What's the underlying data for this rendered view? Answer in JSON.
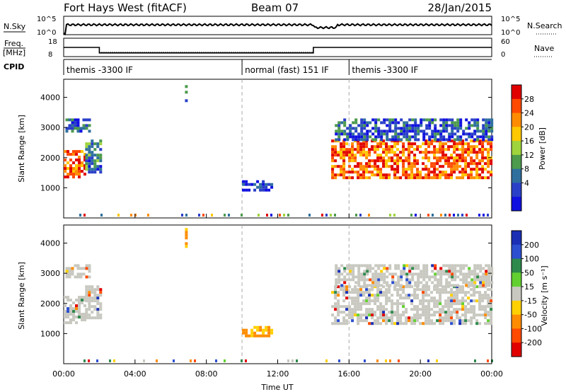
{
  "header": {
    "site": "Fort Hays West (fitACF)",
    "beam": "Beam 07",
    "date": "28/Jan/2015"
  },
  "noise_panel": {
    "left_label": "N.Sky",
    "left_ticks": [
      "10^5",
      "10^0"
    ],
    "right_ticks": [
      "10^5",
      "10^0"
    ],
    "right_label": "N.Search"
  },
  "freq_panel": {
    "left_label_top": "Freq.",
    "left_label_bottom": "[MHz]",
    "left_ticks": [
      "18",
      "8"
    ],
    "right_ticks": [
      "60",
      "0"
    ],
    "right_label": "Nave"
  },
  "cpid_panel": {
    "label": "CPID",
    "segments": [
      {
        "text": "themis -3300 IF",
        "start_hour": 0,
        "end_hour": 10
      },
      {
        "text": "normal (fast) 151 IF",
        "start_hour": 10,
        "end_hour": 16
      },
      {
        "text": "themis -3300 IF",
        "start_hour": 16,
        "end_hour": 24
      }
    ]
  },
  "time_axis": {
    "label": "Time UT",
    "ticks": [
      "00:00",
      "04:00",
      "08:00",
      "12:00",
      "16:00",
      "20:00",
      "00:00"
    ]
  },
  "power_panel": {
    "ylabel": "Slant Range [km]",
    "yticks": [
      "4000",
      "3000",
      "2000",
      "1000"
    ],
    "colorbar_label": "Power [dB]",
    "colorbar_ticks": [
      "28",
      "24",
      "20",
      "16",
      "12",
      "8",
      "4"
    ],
    "colors": [
      "#e10000",
      "#ff4a00",
      "#ff8c00",
      "#ffc800",
      "#9fd43c",
      "#4c9a4c",
      "#2e6f9e",
      "#2a3fc8",
      "#1010e0"
    ]
  },
  "velocity_panel": {
    "ylabel": "Slant Range [km]",
    "yticks": [
      "4000",
      "3000",
      "2000",
      "1000"
    ],
    "colorbar_label": "Velocity [m s⁻¹]",
    "colorbar_ticks": [
      "200",
      "100",
      "50",
      "15",
      "-15",
      "-50",
      "-100",
      "-200"
    ],
    "colors": [
      "#1a2fb4",
      "#2c4fd0",
      "#2e8a4c",
      "#62d030",
      "#c8c8c0",
      "#ffd000",
      "#ff8c00",
      "#ff4a00",
      "#e10000"
    ]
  },
  "chart_data": {
    "type": "heatmap",
    "x_range_hours": [
      0,
      24
    ],
    "y_range_km": [
      0,
      4600
    ],
    "echo_regions": [
      {
        "t0": 0.0,
        "t1": 1.2,
        "r0": 1350,
        "r1": 2250,
        "power_db": 24,
        "velocity": -15
      },
      {
        "t0": 1.2,
        "t1": 2.1,
        "r0": 1500,
        "r1": 2600,
        "power_db": 10,
        "velocity": -15
      },
      {
        "t0": 0.1,
        "t1": 1.4,
        "r0": 2900,
        "r1": 3300,
        "power_db": 8,
        "velocity": 15
      },
      {
        "t0": 10.0,
        "t1": 11.7,
        "r0": 950,
        "r1": 1250,
        "power_db": 6,
        "velocity": -60
      },
      {
        "t0": 15.0,
        "t1": 24.0,
        "r0": 1300,
        "r1": 2600,
        "power_db": 24,
        "velocity": -15
      },
      {
        "t0": 15.2,
        "t1": 24.0,
        "r0": 2600,
        "r1": 3300,
        "power_db": 8,
        "velocity": 15
      },
      {
        "t0": 6.8,
        "t1": 6.9,
        "r0": 3900,
        "r1": 4500,
        "power_db": 8,
        "velocity": -100
      }
    ],
    "freq_mhz": [
      {
        "t0": 0,
        "t1": 2,
        "value": 13
      },
      {
        "t0": 2,
        "t1": 14,
        "value": 10
      },
      {
        "t0": 14,
        "t1": 24,
        "value": 13
      }
    ],
    "nave": [
      {
        "t0": 0,
        "t1": 2,
        "value": 30
      },
      {
        "t0": 2,
        "t1": 14,
        "value": 15
      },
      {
        "t0": 14,
        "t1": 24,
        "value": 30
      }
    ]
  }
}
